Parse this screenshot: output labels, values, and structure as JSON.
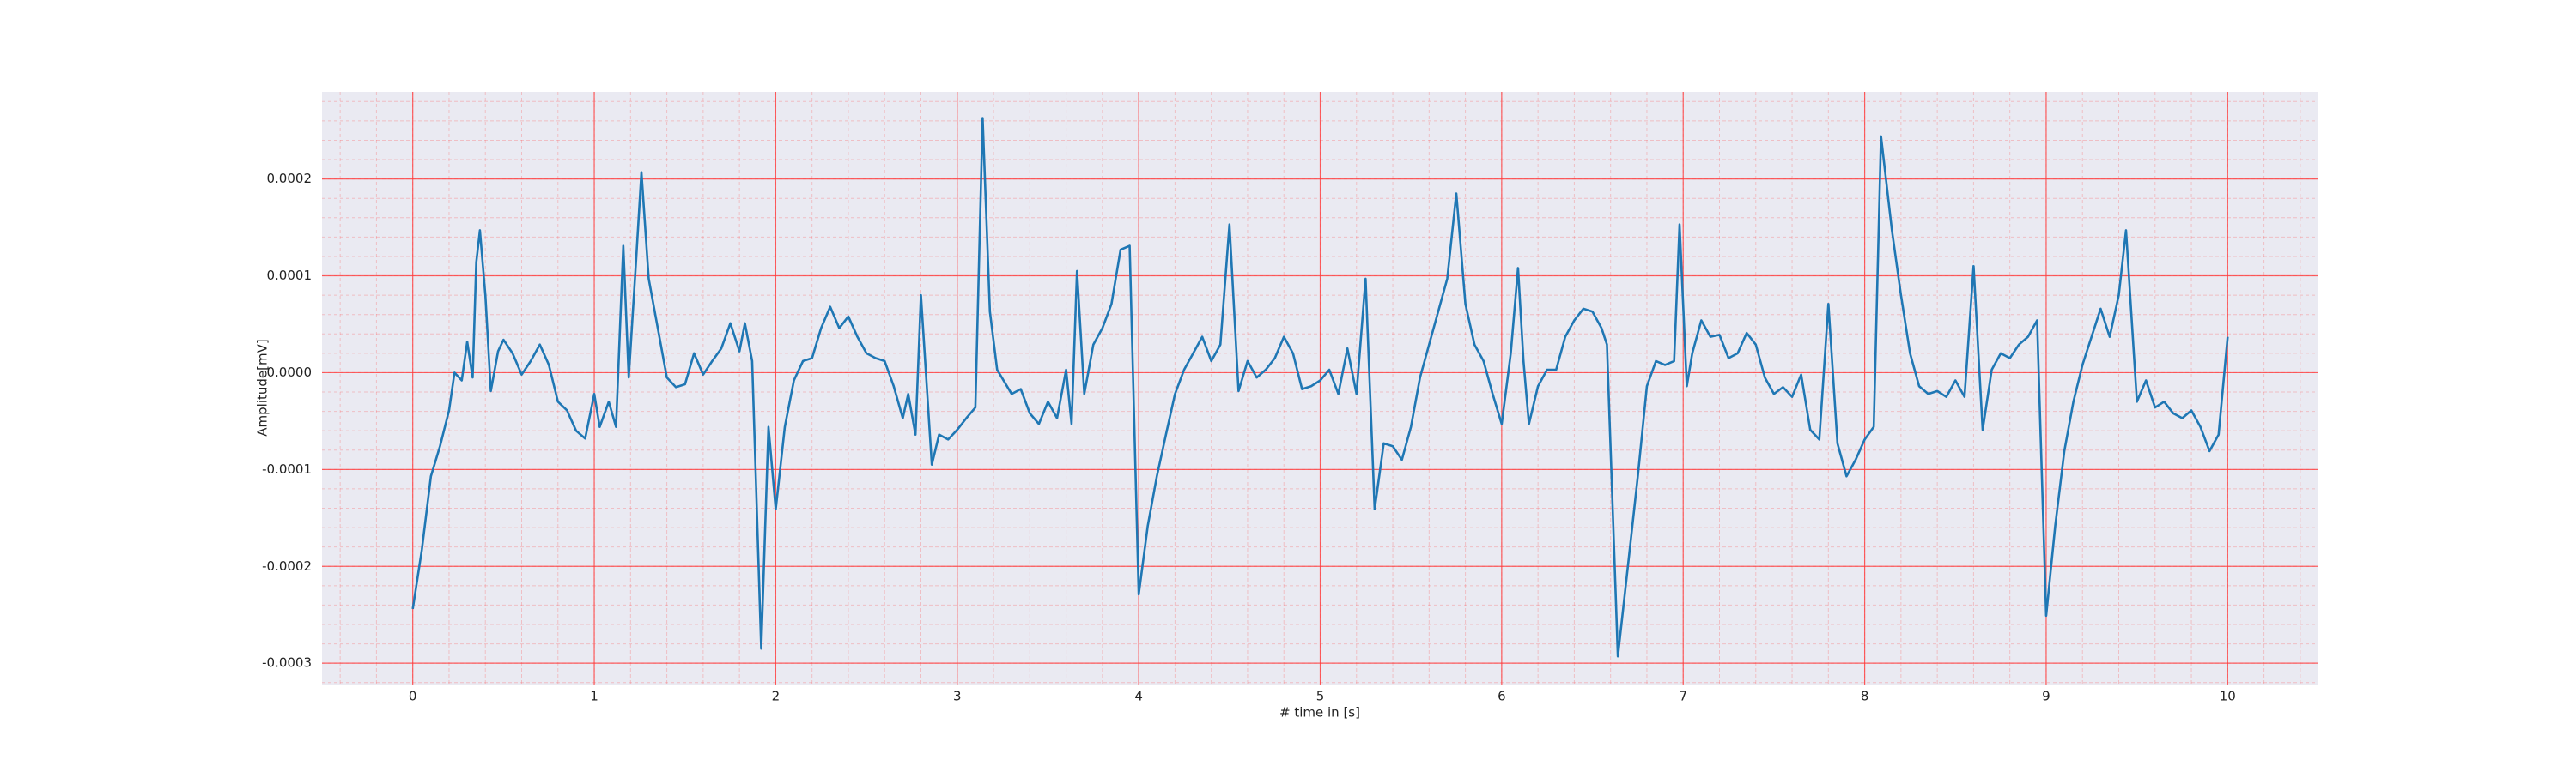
{
  "chart_data": {
    "type": "line",
    "x_label": "# time in [s]",
    "y_label": "Amplitude[mV]",
    "color": "#1f77b4",
    "grid": true,
    "grid_color": "#ff3b3b",
    "minor_grid": true,
    "background": "#eaeaf2",
    "xlim": [
      -0.5,
      10.5
    ],
    "xticks": [
      0,
      1,
      2,
      3,
      4,
      5,
      6,
      7,
      8,
      9,
      10
    ],
    "ylim": [
      -0.000322,
      0.00029
    ],
    "yticks": [
      {
        "value": -0.0003,
        "label": "-0.0003"
      },
      {
        "value": -0.0002,
        "label": "-0.0002"
      },
      {
        "value": -0.0001,
        "label": "-0.0001"
      },
      {
        "value": 0,
        "label": "0.0000"
      },
      {
        "value": 0.0001,
        "label": "0.0001"
      },
      {
        "value": 0.0002,
        "label": "0.0002"
      }
    ],
    "x": [
      0,
      0.05,
      0.1,
      0.15,
      0.2,
      0.23,
      0.27,
      0.3,
      0.33,
      0.35,
      0.37,
      0.4,
      0.43,
      0.47,
      0.5,
      0.55,
      0.6,
      0.65,
      0.7,
      0.75,
      0.8,
      0.85,
      0.9,
      0.95,
      1.0,
      1.03,
      1.08,
      1.12,
      1.16,
      1.19,
      1.23,
      1.26,
      1.3,
      1.35,
      1.4,
      1.45,
      1.5,
      1.55,
      1.6,
      1.65,
      1.7,
      1.75,
      1.8,
      1.83,
      1.87,
      1.92,
      1.96,
      2.0,
      2.05,
      2.1,
      2.15,
      2.2,
      2.25,
      2.3,
      2.35,
      2.4,
      2.45,
      2.5,
      2.55,
      2.6,
      2.65,
      2.7,
      2.73,
      2.77,
      2.8,
      2.86,
      2.9,
      2.95,
      3.0,
      3.05,
      3.1,
      3.14,
      3.18,
      3.22,
      3.3,
      3.35,
      3.4,
      3.45,
      3.5,
      3.55,
      3.6,
      3.63,
      3.66,
      3.7,
      3.75,
      3.8,
      3.85,
      3.9,
      3.95,
      4.0,
      4.05,
      4.1,
      4.15,
      4.2,
      4.25,
      4.3,
      4.35,
      4.4,
      4.45,
      4.5,
      4.55,
      4.6,
      4.65,
      4.7,
      4.75,
      4.8,
      4.85,
      4.9,
      4.95,
      5.0,
      5.05,
      5.1,
      5.15,
      5.2,
      5.25,
      5.3,
      5.35,
      5.4,
      5.45,
      5.5,
      5.55,
      5.6,
      5.65,
      5.7,
      5.75,
      5.8,
      5.85,
      5.9,
      5.95,
      6.0,
      6.05,
      6.09,
      6.12,
      6.15,
      6.2,
      6.25,
      6.3,
      6.35,
      6.4,
      6.45,
      6.5,
      6.55,
      6.58,
      6.64,
      6.7,
      6.75,
      6.8,
      6.85,
      6.9,
      6.95,
      6.98,
      7.02,
      7.05,
      7.1,
      7.15,
      7.2,
      7.25,
      7.3,
      7.35,
      7.4,
      7.45,
      7.5,
      7.55,
      7.6,
      7.65,
      7.7,
      7.75,
      7.8,
      7.85,
      7.9,
      7.95,
      8.0,
      8.05,
      8.09,
      8.15,
      8.2,
      8.25,
      8.3,
      8.35,
      8.4,
      8.45,
      8.5,
      8.55,
      8.6,
      8.65,
      8.7,
      8.75,
      8.8,
      8.85,
      8.9,
      8.95,
      9.0,
      9.05,
      9.1,
      9.15,
      9.2,
      9.25,
      9.3,
      9.35,
      9.4,
      9.44,
      9.5,
      9.55,
      9.6,
      9.65,
      9.7,
      9.75,
      9.8,
      9.85,
      9.9,
      9.95,
      10.0
    ],
    "values": [
      -0.000244,
      -0.000183,
      -0.000107,
      -7.6e-05,
      -3.9e-05,
      0,
      -8e-06,
      3.2e-05,
      -5e-06,
      0.000114,
      0.000147,
      8e-05,
      -1.9e-05,
      2.2e-05,
      3.4e-05,
      2e-05,
      -2e-06,
      1.2e-05,
      2.9e-05,
      8e-06,
      -3e-05,
      -3.9e-05,
      -6e-05,
      -6.8e-05,
      -2.2e-05,
      -5.6e-05,
      -3e-05,
      -5.6e-05,
      0.000131,
      -5e-06,
      0.000114,
      0.000207,
      9.7e-05,
      4.6e-05,
      -5e-06,
      -1.5e-05,
      -1.2e-05,
      2e-05,
      -2e-06,
      1.2e-05,
      2.5e-05,
      5.1e-05,
      2.2e-05,
      5.1e-05,
      1.2e-05,
      -0.000285,
      -5.6e-05,
      -0.000141,
      -5.6e-05,
      -8e-06,
      1.2e-05,
      1.5e-05,
      4.6e-05,
      6.8e-05,
      4.6e-05,
      5.8e-05,
      3.7e-05,
      2e-05,
      1.5e-05,
      1.2e-05,
      -1.4e-05,
      -4.7e-05,
      -2.2e-05,
      -6.4e-05,
      8e-05,
      -9.5e-05,
      -6.4e-05,
      -6.9e-05,
      -5.9e-05,
      -4.7e-05,
      -3.6e-05,
      0.000263,
      6.3e-05,
      3e-06,
      -2.2e-05,
      -1.7e-05,
      -4.2e-05,
      -5.3e-05,
      -3e-05,
      -4.7e-05,
      3e-06,
      -5.3e-05,
      0.000105,
      -2.2e-05,
      2.9e-05,
      4.6e-05,
      7.1e-05,
      0.000127,
      0.000131,
      -0.000229,
      -0.000158,
      -0.000107,
      -6.4e-05,
      -2.2e-05,
      3e-06,
      2e-05,
      3.7e-05,
      1.2e-05,
      2.9e-05,
      0.000153,
      -1.9e-05,
      1.2e-05,
      -5e-06,
      3e-06,
      1.5e-05,
      3.7e-05,
      2e-05,
      -1.7e-05,
      -1.4e-05,
      -8e-06,
      3e-06,
      -2.2e-05,
      2.5e-05,
      -2.2e-05,
      9.7e-05,
      -0.000141,
      -7.3e-05,
      -7.6e-05,
      -9e-05,
      -5.6e-05,
      -5e-06,
      2.9e-05,
      6.3e-05,
      9.7e-05,
      0.000185,
      7.1e-05,
      2.9e-05,
      1.2e-05,
      -2.2e-05,
      -5.3e-05,
      2e-05,
      0.000108,
      1.2e-05,
      -5.3e-05,
      -1.4e-05,
      3e-06,
      3e-06,
      3.7e-05,
      5.4e-05,
      6.6e-05,
      6.3e-05,
      4.6e-05,
      2.9e-05,
      -0.000293,
      -0.000192,
      -0.000107,
      -1.4e-05,
      1.2e-05,
      8e-06,
      1.2e-05,
      0.000153,
      -1.4e-05,
      2e-05,
      5.4e-05,
      3.7e-05,
      3.9e-05,
      1.5e-05,
      2e-05,
      4.1e-05,
      2.9e-05,
      -5e-06,
      -2.2e-05,
      -1.5e-05,
      -2.5e-05,
      -2e-06,
      -5.9e-05,
      -6.9e-05,
      7.1e-05,
      -7.3e-05,
      -0.000107,
      -9e-05,
      -6.9e-05,
      -5.6e-05,
      0.000244,
      0.000147,
      8e-05,
      2e-05,
      -1.4e-05,
      -2.2e-05,
      -1.9e-05,
      -2.5e-05,
      -8e-06,
      -2.5e-05,
      0.00011,
      -5.9e-05,
      3e-06,
      2e-05,
      1.5e-05,
      2.9e-05,
      3.7e-05,
      5.4e-05,
      -0.000251,
      -0.000158,
      -8.1e-05,
      -3e-05,
      8e-06,
      3.7e-05,
      6.6e-05,
      3.7e-05,
      8e-05,
      0.000147,
      -3e-05,
      -8e-06,
      -3.6e-05,
      -3e-05,
      -4.2e-05,
      -4.7e-05,
      -3.9e-05,
      -5.6e-05,
      -8.1e-05,
      -6.4e-05,
      3.7e-05
    ]
  }
}
